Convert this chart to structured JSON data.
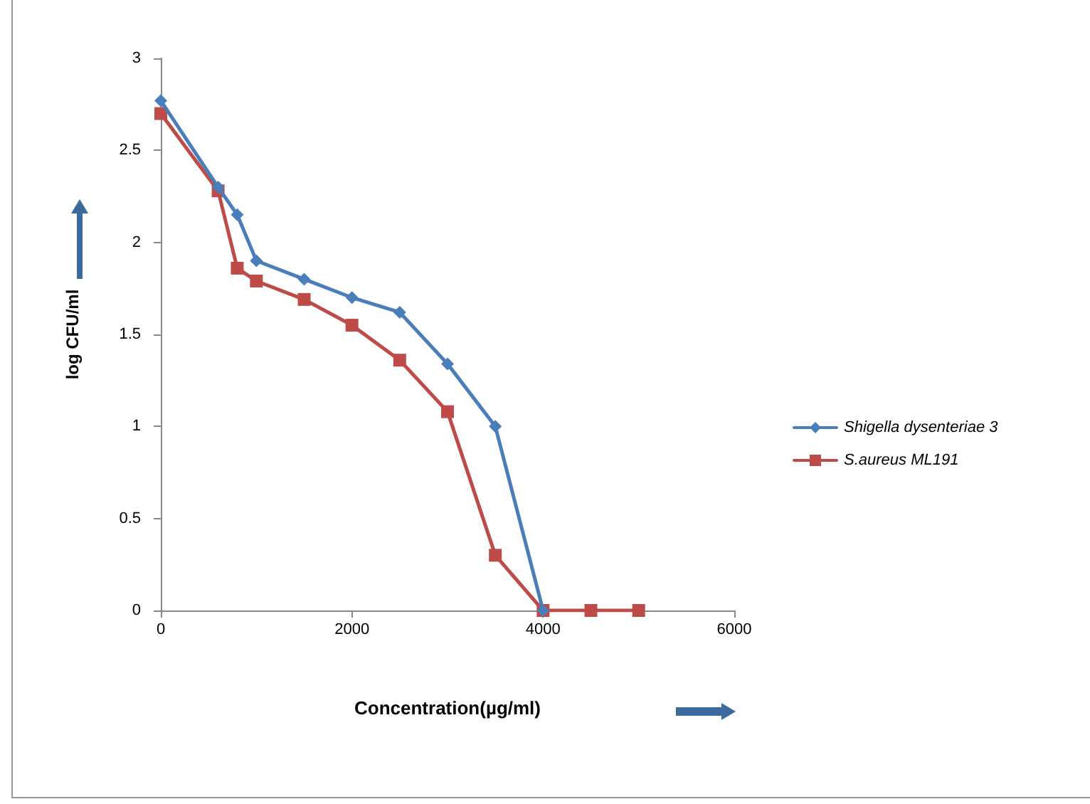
{
  "chart_data": {
    "type": "line",
    "xlabel": "Concentration(µg/ml)",
    "ylabel": "log CFU/ml",
    "xlim": [
      0,
      6000
    ],
    "xticks": [
      0,
      2000,
      4000,
      6000
    ],
    "ylim": [
      0,
      3
    ],
    "yticks": [
      0,
      0.5,
      1,
      1.5,
      2,
      2.5,
      3
    ],
    "grid": false,
    "legend": "right",
    "series": [
      {
        "name": "Shigella dysenteriae 3",
        "color": "#4a7ebb",
        "marker": "diamond",
        "x": [
          0,
          600,
          800,
          1000,
          1500,
          2000,
          2500,
          3000,
          3500,
          4000
        ],
        "values": [
          2.77,
          2.3,
          2.15,
          1.9,
          1.8,
          1.7,
          1.62,
          1.34,
          1.0,
          0
        ]
      },
      {
        "name": "S.aureus ML191",
        "color": "#be4b48",
        "marker": "square",
        "x": [
          0,
          600,
          800,
          1000,
          1500,
          2000,
          2500,
          3000,
          3500,
          4000,
          4500,
          5000
        ],
        "values": [
          2.7,
          2.28,
          1.86,
          1.79,
          1.69,
          1.55,
          1.36,
          1.08,
          0.3,
          0,
          0,
          0
        ]
      }
    ]
  }
}
